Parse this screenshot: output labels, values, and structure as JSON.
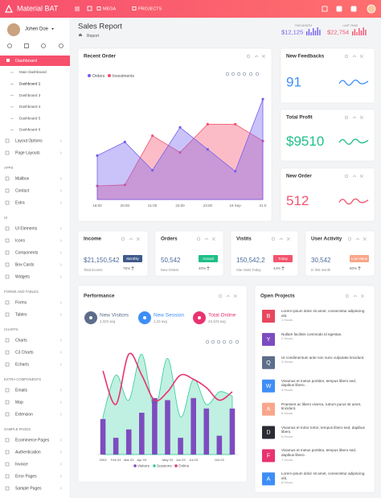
{
  "topbar": {
    "brand": "Material BAT",
    "menu": [
      "MEGA",
      "PROJECTS"
    ]
  },
  "sidebar": {
    "user": "Johen Doe",
    "dashboard": "Dashboard",
    "dashboard_pages": [
      "Main Dashboard",
      "Dashboard 2",
      "Dashboard 3",
      "Dashboard 4",
      "Dashboard 5",
      "Dashboard 6"
    ],
    "sections": [
      {
        "items": [
          "Layout Options",
          "Page Layouts"
        ]
      },
      {
        "heading": "APPS",
        "items": [
          "Mailbox",
          "Contact",
          "Extra"
        ]
      },
      {
        "heading": "UI",
        "items": [
          "UI Elements",
          "Icons",
          "Components",
          "Box Cards",
          "Widgets"
        ]
      },
      {
        "heading": "FORMS AND TABLES",
        "items": [
          "Forms",
          "Tables"
        ]
      },
      {
        "heading": "CHARTS",
        "items": [
          "Charts",
          "C3 Charts",
          "Echarts"
        ]
      },
      {
        "heading": "EXTRA COMPONENTS",
        "items": [
          "Emails",
          "Map",
          "Extension"
        ]
      },
      {
        "heading": "SAMPLE PAGES",
        "items": [
          "Ecommerce Pages",
          "Authentication",
          "Invoice",
          "Error Pages",
          "Sample Pages"
        ]
      }
    ]
  },
  "header": {
    "title": "Sales Report",
    "breadcrumb": "Report",
    "stats": [
      {
        "label": "THIS MONTH",
        "value": "$12,125",
        "color": "#7460ee"
      },
      {
        "label": "LAST YEAR",
        "value": "$22,754",
        "color": "#f2546d"
      }
    ]
  },
  "recent_order": {
    "title": "Recent Order",
    "chart": {
      "type": "area",
      "categories": [
        "18:00",
        "20:00",
        "21:00",
        "22:00",
        "23:00",
        "19 Sep",
        "01:0"
      ],
      "ylim": [
        0,
        100
      ],
      "series": [
        {
          "name": "Orders",
          "color": "#7460ee",
          "values": [
            42,
            55,
            28,
            69,
            48,
            27,
            96
          ]
        },
        {
          "name": "Investments",
          "color": "#f7506c",
          "values": [
            13,
            14,
            61,
            45,
            72,
            72,
            56
          ]
        }
      ]
    }
  },
  "stat_cards": [
    {
      "title": "New Feedbacks",
      "value": "91",
      "color": "#3e8ef7"
    },
    {
      "title": "Total Profit",
      "value": "$9510",
      "color": "#1fbf87"
    },
    {
      "title": "New Order",
      "value": "512",
      "color": "#f2546d"
    }
  ],
  "summary_cards": [
    {
      "title": "Income",
      "value": "$21,150,542",
      "badge": "Monthly",
      "badge_color": "#3e5a8c",
      "caption": "Total Income",
      "change": "75%"
    },
    {
      "title": "Orders",
      "value": "50,542",
      "badge": "Annual",
      "badge_color": "#1fbf87",
      "caption": "New Orders",
      "change": "40%"
    },
    {
      "title": "Vistits",
      "value": "150,542,2",
      "badge": "Today",
      "badge_color": "#f2546d",
      "caption": "Site Visits Today",
      "change": "44%"
    },
    {
      "title": "User Activity",
      "value": "30,542",
      "badge": "Low Value",
      "badge_color": "#f9a68a",
      "caption": "In first month",
      "change": "60%"
    }
  ],
  "performance": {
    "title": "Performance",
    "highlights": [
      {
        "label": "New Visitors",
        "value": "2,323 avg",
        "color": "#5d6d8a"
      },
      {
        "label": "New Session",
        "value": "1,23 avg",
        "color": "#3e8ef7"
      },
      {
        "label": "Total Online",
        "value": "23,423 avg",
        "color": "#e8336f"
      }
    ],
    "chart": {
      "type": "bar-line",
      "categories": [
        "2003",
        "Feb 03",
        "Mar 03",
        "Apr 03",
        null,
        "May 03",
        "Jun 03",
        "Jul 03",
        null,
        "Oct 03",
        null
      ],
      "ylim": [
        0,
        100
      ],
      "series": [
        {
          "name": "Visitors",
          "type": "bar",
          "color": "#7d4cbf",
          "values": [
            34,
            16,
            24,
            40,
            54,
            52,
            16,
            54,
            44,
            18,
            44
          ]
        },
        {
          "name": "Sessions",
          "type": "area",
          "color": "#2ecc9a",
          "values": [
            36,
            76,
            52,
            96,
            44,
            92,
            36,
            72,
            48,
            60,
            56
          ]
        },
        {
          "name": "Online",
          "type": "line",
          "color": "#e8336f",
          "values": [
            80,
            48,
            96,
            76,
            52,
            60,
            76,
            72,
            64,
            52,
            60
          ]
        }
      ]
    }
  },
  "projects": {
    "title": "Open Projects",
    "items": [
      {
        "initial": "B",
        "color": "#e8475f",
        "text": "Lorem ipsum dolor sit amet, consectetur adipiscing elit.",
        "time": "1 Hours"
      },
      {
        "initial": "Y",
        "color": "#7d4cbf",
        "text": "Nullam facilisis commodo id egestas.",
        "time": "2 Hours"
      },
      {
        "initial": "Q",
        "color": "#5d6d8a",
        "text": "Ut condimentum ante non nunc vulputate tincidunt.",
        "time": "3 Hours"
      },
      {
        "initial": "W",
        "color": "#3e8ef7",
        "text": "Vivamus et metus porttitor, tempus libero sed, dapibus libero.",
        "time": "4 Hours"
      },
      {
        "initial": "A",
        "color": "#f9a68a",
        "text": "Praesent ac libero viverra, rutrum purus sit amet, tincidunt.",
        "time": "5 Hours"
      },
      {
        "initial": "D",
        "color": "#2b2b35",
        "text": "Vivamus et tortor tortor, tempus libero sed, dapibus libero.",
        "time": "6 Hours"
      },
      {
        "initial": "F",
        "color": "#e8336f",
        "text": "Vivamus et metus porttitor, tempus libero sed, dapibus libero.",
        "time": "7 Hours"
      },
      {
        "initial": "A",
        "color": "#3e8ef7",
        "text": "Lorem ipsum dolor sit amet, consectetur adipiscing elit.",
        "time": "8 Hours"
      }
    ]
  }
}
